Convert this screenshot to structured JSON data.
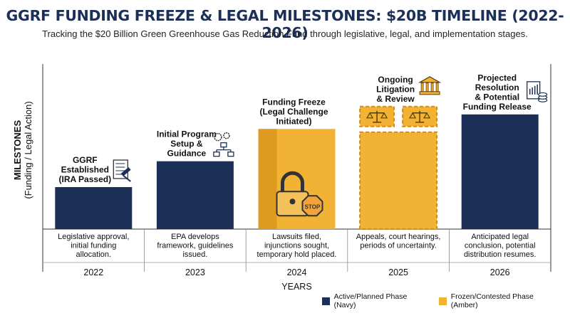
{
  "header": {
    "title": "GGRF FUNDING FREEZE & LEGAL MILESTONES: $20B TIMELINE (2022-2026)",
    "subtitle": "Tracking the $20 Billion Green Greenhouse Gas Reduction Fund through legislative, legal, and implementation stages."
  },
  "axes": {
    "ylabel_main": "MILESTONES",
    "ylabel_sub": "(Funding / Legal Action)",
    "xlabel": "YEARS"
  },
  "colors": {
    "navy": "#1b2f57",
    "amber": "#f2b233",
    "amber_dark": "#d9951c",
    "amber_border": "#d98a14"
  },
  "legend": [
    {
      "label": "Active/Planned Phase (Navy)",
      "color": "#1b2f57"
    },
    {
      "label": "Frozen/Contested Phase (Amber)",
      "color": "#f2b233"
    }
  ],
  "chart_data": {
    "type": "bar",
    "categories": [
      "2022",
      "2023",
      "2024",
      "2025",
      "2026"
    ],
    "values": [
      26,
      42,
      62,
      60,
      71
    ],
    "ylim": [
      0,
      100
    ],
    "xlabel": "YEARS",
    "ylabel": "MILESTONES (Funding / Legal Action)",
    "phases": [
      "active",
      "active",
      "frozen",
      "frozen",
      "active"
    ],
    "milestones": [
      "GGRF Established (IRA Passed)",
      "Initial Program Setup & Guidance",
      "Funding Freeze (Legal Challenge Initiated)",
      "Ongoing Litigation & Review",
      "Projected Resolution & Potential Funding Release"
    ],
    "milestone_lines": [
      [
        "GGRF",
        "Established",
        "(IRA Passed)"
      ],
      [
        "Initial Program",
        "Setup &",
        "Guidance"
      ],
      [
        "Funding Freeze",
        "(Legal Challenge",
        "Initiated)"
      ],
      [
        "Ongoing",
        "Litigation",
        "& Review"
      ],
      [
        "Projected",
        "Resolution",
        "& Potential",
        "Funding Release"
      ]
    ],
    "descriptions": [
      [
        "Legislative approval,",
        "initial funding",
        "allocation."
      ],
      [
        "EPA develops",
        "framework, guidelines",
        "issued."
      ],
      [
        "Lawsuits filed,",
        "injunctions sought,",
        "temporary hold placed."
      ],
      [
        "Appeals, court hearings,",
        "periods of uncertainty."
      ],
      [
        "Anticipated legal",
        "conclusion, potential",
        "distribution resumes."
      ]
    ],
    "icons": [
      "contract-gavel-icon",
      "workflow-gears-icon",
      "lock-stop-icon",
      "courthouse-icon",
      "document-coins-icon"
    ]
  }
}
